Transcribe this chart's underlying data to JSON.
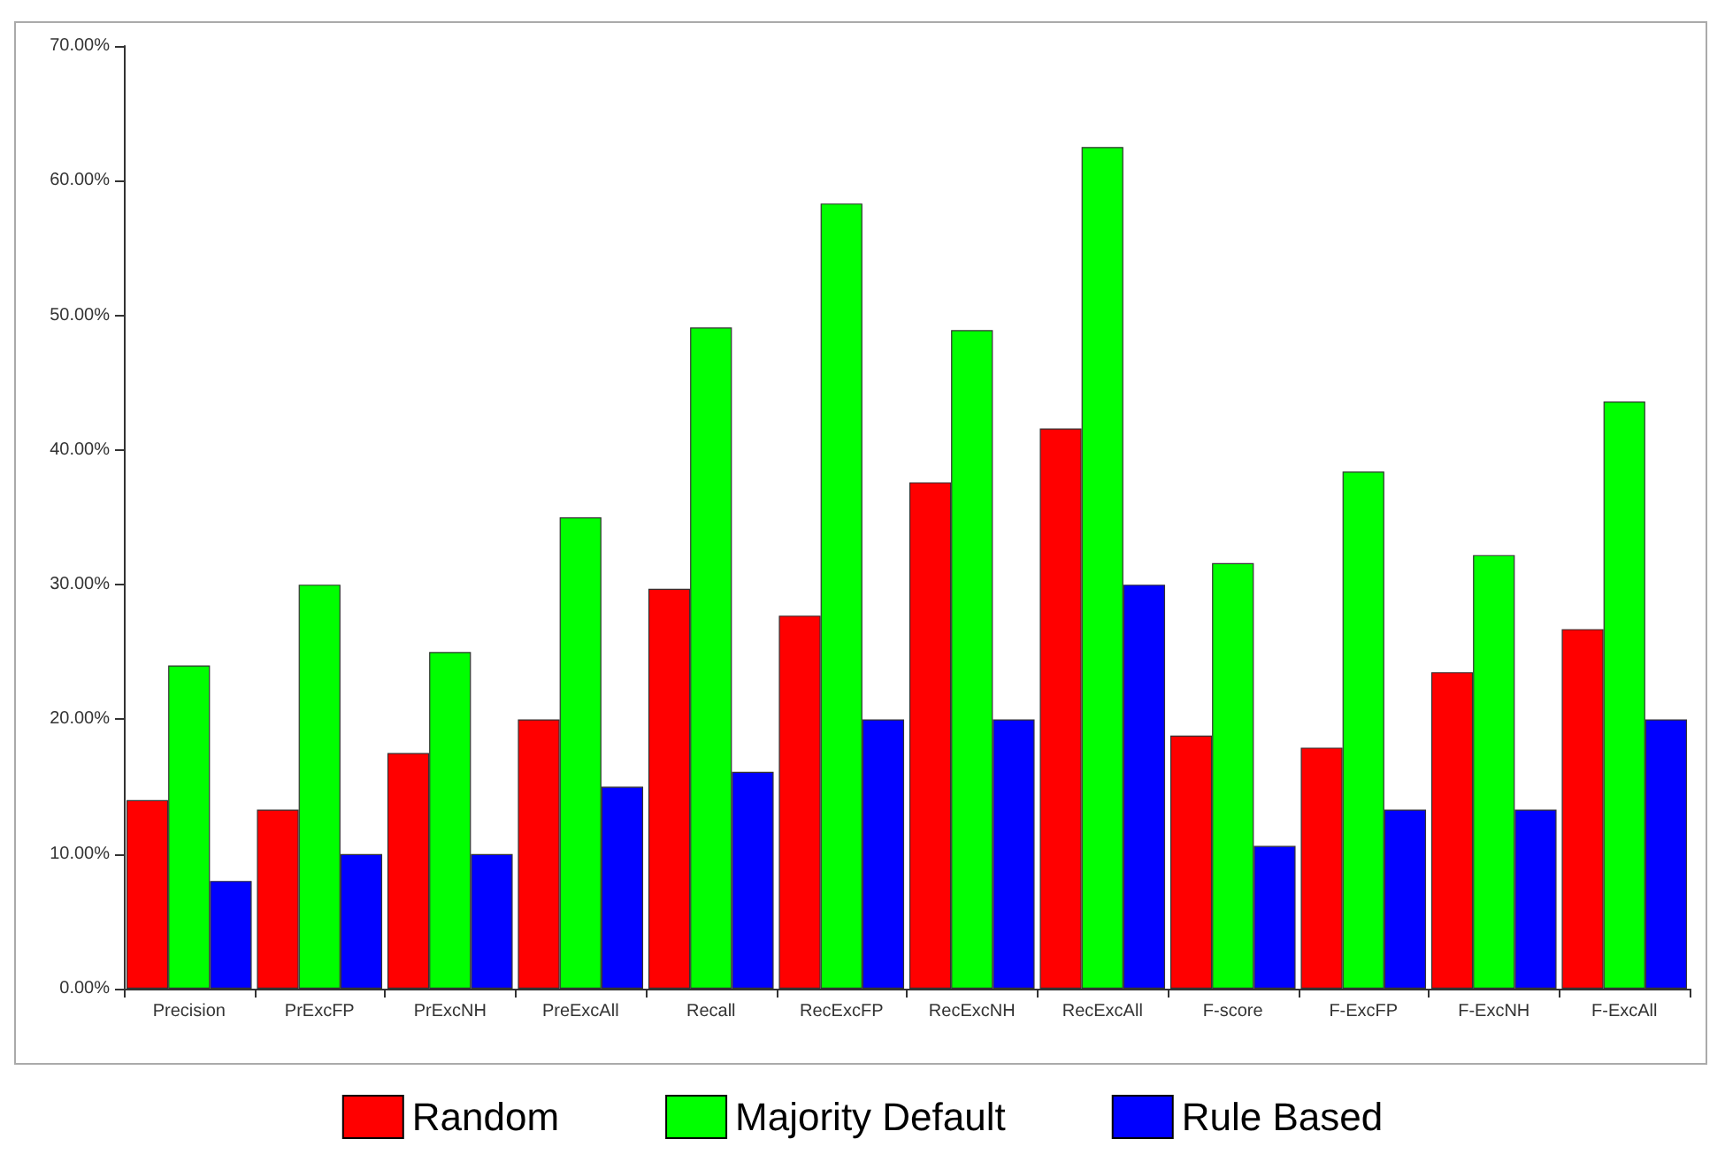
{
  "chart_data": {
    "type": "bar",
    "categories": [
      "Precision",
      "PrExcFP",
      "PrExcNH",
      "PreExcAll",
      "Recall",
      "RecExcFP",
      "RecExcNH",
      "RecExcAll",
      "F-score",
      "F-ExcFP",
      "F-ExcNH",
      "F-ExcAll"
    ],
    "series": [
      {
        "name": "Random",
        "color": "#ff0000",
        "values": [
          14.0,
          13.3,
          17.5,
          20.0,
          29.7,
          27.7,
          37.6,
          41.6,
          18.8,
          17.9,
          23.5,
          26.7
        ]
      },
      {
        "name": "Majority Default",
        "color": "#00ff00",
        "values": [
          24.0,
          30.0,
          25.0,
          35.0,
          49.1,
          58.3,
          48.9,
          62.5,
          31.6,
          38.4,
          32.2,
          43.6
        ]
      },
      {
        "name": "Rule Based",
        "color": "#0000ff",
        "values": [
          8.0,
          10.0,
          10.0,
          15.0,
          16.1,
          20.0,
          20.0,
          30.0,
          10.6,
          13.3,
          13.3,
          20.0
        ]
      }
    ],
    "ylim": [
      0,
      70
    ],
    "yticks": [
      {
        "value": 0,
        "label": "0.00%"
      },
      {
        "value": 10,
        "label": "10.00%"
      },
      {
        "value": 20,
        "label": "20.00%"
      },
      {
        "value": 30,
        "label": "30.00%"
      },
      {
        "value": 40,
        "label": "40.00%"
      },
      {
        "value": 50,
        "label": "50.00%"
      },
      {
        "value": 60,
        "label": "60.00%"
      },
      {
        "value": 70,
        "label": "70.00%"
      }
    ],
    "grid": false,
    "legend": "bottom"
  }
}
